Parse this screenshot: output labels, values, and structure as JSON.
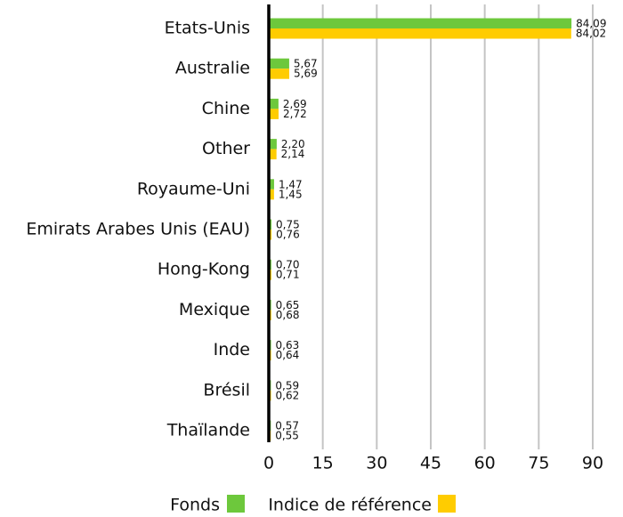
{
  "chart_data": {
    "type": "bar",
    "orientation": "horizontal",
    "categories": [
      "Etats-Unis",
      "Australie",
      "Chine",
      "Other",
      "Royaume-Uni",
      "Emirats Arabes Unis (EAU)",
      "Hong-Kong",
      "Mexique",
      "Inde",
      "Brésil",
      "Thaïlande"
    ],
    "series": [
      {
        "name": "Fonds",
        "color": "#6dc83c",
        "values": [
          84.09,
          5.67,
          2.69,
          2.2,
          1.47,
          0.75,
          0.7,
          0.65,
          0.63,
          0.59,
          0.57
        ],
        "value_labels": [
          "84,09",
          "5,67",
          "2,69",
          "2,20",
          "1,47",
          "0,75",
          "0,70",
          "0,65",
          "0,63",
          "0,59",
          "0,57"
        ]
      },
      {
        "name": "Indice de référence",
        "color": "#ffcc00",
        "values": [
          84.02,
          5.69,
          2.72,
          2.14,
          1.45,
          0.76,
          0.71,
          0.68,
          0.64,
          0.62,
          0.55
        ],
        "value_labels": [
          "84,02",
          "5,69",
          "2,72",
          "2,14",
          "1,45",
          "0,76",
          "0,71",
          "0,68",
          "0,64",
          "0,62",
          "0,55"
        ]
      }
    ],
    "xlim": [
      0,
      90
    ],
    "xticks": [
      0,
      15,
      30,
      45,
      60,
      75,
      90
    ],
    "grid": true,
    "legend": "bottom"
  }
}
